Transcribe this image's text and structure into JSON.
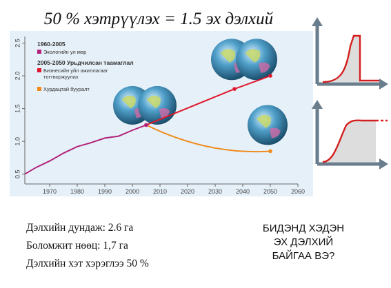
{
  "title": "50 % хэтрүүлэх = 1.5 эх дэлхий",
  "chart_data": {
    "type": "line",
    "x": [
      1961,
      1965,
      1970,
      1975,
      1980,
      1985,
      1990,
      1995,
      2000,
      2005
    ],
    "series": [
      {
        "name": "Экологийн ул мөр",
        "values": [
          0.5,
          0.6,
          0.7,
          0.82,
          0.92,
          0.98,
          1.05,
          1.08,
          1.17,
          1.25
        ]
      },
      {
        "name": "Бизнесийн уйл ажиллагааг тогтворжуулах",
        "x": [
          2005,
          2037,
          2050
        ],
        "values": [
          1.25,
          1.8,
          2.0
        ]
      },
      {
        "name": "Хурдацтай бууралт",
        "x": [
          2005,
          2050
        ],
        "values": [
          1.25,
          0.85
        ]
      }
    ],
    "xlim": [
      1961,
      2060
    ],
    "ylim": [
      0.35,
      2.6
    ],
    "xticks": [
      1970,
      1980,
      1990,
      2000,
      2010,
      2020,
      2030,
      2040,
      2050,
      2060
    ],
    "yticks": [
      "0.5",
      "1.0",
      "1.5",
      "2.0",
      "2.5"
    ],
    "legend": {
      "group1_title": "1960-2005",
      "group1_items": [
        "Экологийн ул мөр"
      ],
      "group2_title": "2005-2050 Урьдчилсан таамаглал",
      "group2_items": [
        "Бизнесийн уйл ажиллагааг тогтворжуулах",
        "Хурдацтай бууралт"
      ],
      "placement": "top-left"
    },
    "colors": {
      "historic": "#b2227a",
      "business": "#e0182d",
      "reduction": "#f08a1c",
      "background": "#e6f0f8"
    }
  },
  "stats": [
    "Дэлхийн дундаж: 2.6 га",
    "Боломжит нөөц: 1,7 га",
    "Дэлхийн хэт хэрэглээ 50 %"
  ],
  "question_lines": [
    "БИДЭНД ХЭДЭН",
    "ЭХ ДЭЛХИЙ",
    "БАЙГАА ВЭ?"
  ],
  "icons": [
    "globe-icon",
    "overshoot-collapse-graph-icon",
    "overshoot-stabilize-graph-icon"
  ]
}
